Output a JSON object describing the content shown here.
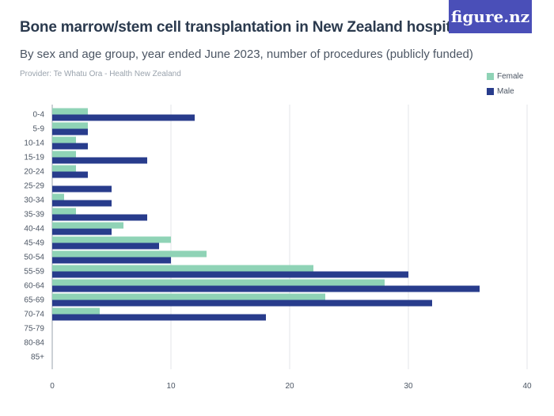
{
  "header": {
    "title": "Bone marrow/stem cell transplantation in New Zealand hospitals",
    "subtitle": "By sex and age group, year ended June 2023, number of procedures (publicly funded)",
    "provider": "Provider: Te Whatu Ora - Health New Zealand",
    "logo_text": "figure.nz"
  },
  "chart_data": {
    "type": "bar",
    "orientation": "horizontal",
    "categories": [
      "0-4",
      "5-9",
      "10-14",
      "15-19",
      "20-24",
      "25-29",
      "30-34",
      "35-39",
      "40-44",
      "45-49",
      "50-54",
      "55-59",
      "60-64",
      "65-69",
      "70-74",
      "75-79",
      "80-84",
      "85+"
    ],
    "series": [
      {
        "name": "Female",
        "color": "#8fd3b6",
        "values": [
          3,
          3,
          2,
          2,
          2,
          0,
          1,
          2,
          6,
          10,
          13,
          22,
          28,
          23,
          4,
          0,
          0,
          0
        ]
      },
      {
        "name": "Male",
        "color": "#283c8c",
        "values": [
          12,
          3,
          3,
          8,
          3,
          5,
          5,
          8,
          5,
          9,
          10,
          30,
          36,
          32,
          18,
          0,
          0,
          0
        ]
      }
    ],
    "xlim": [
      0,
      40
    ],
    "xticks": [
      0,
      10,
      20,
      30,
      40
    ],
    "grid": true,
    "legend_position": "top-right"
  }
}
